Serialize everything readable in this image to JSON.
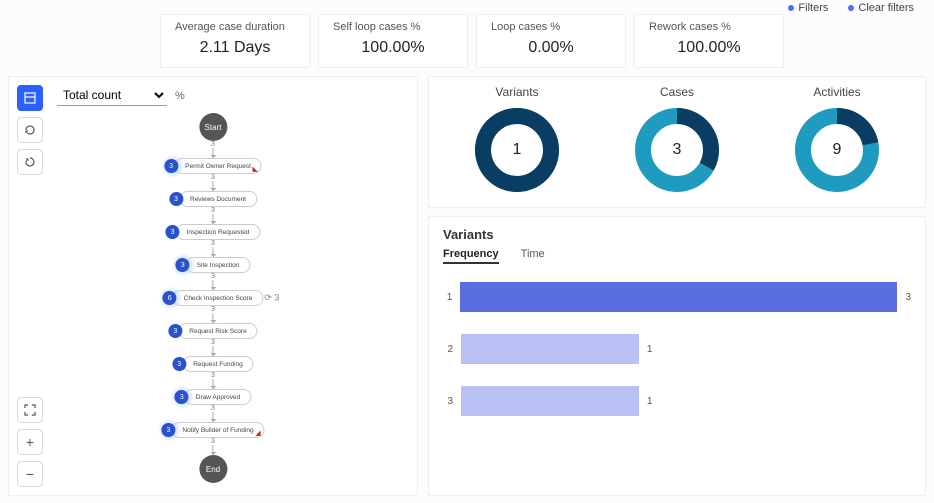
{
  "topbar": {
    "filters": "Filters",
    "clear": "Clear filters"
  },
  "metrics": [
    {
      "label": "Average case duration",
      "value": "2.11 Days"
    },
    {
      "label": "Self loop cases %",
      "value": "100.00%"
    },
    {
      "label": "Loop cases %",
      "value": "0.00%"
    },
    {
      "label": "Rework cases %",
      "value": "100.00%"
    }
  ],
  "left": {
    "dropdown": "Total count",
    "pct_symbol": "%",
    "flow": {
      "start": "Start",
      "end": "End",
      "edge_count": "3",
      "loop_label": "3",
      "nodes": [
        {
          "count": "3",
          "label": "Permit Owner Request",
          "halo": true,
          "corner": "◣",
          "corner_color": "#c62828"
        },
        {
          "count": "3",
          "label": "Reviews Document",
          "halo": false
        },
        {
          "count": "3",
          "label": "Inspection Requested",
          "halo": false
        },
        {
          "count": "3",
          "label": "Site Inspection",
          "halo": true
        },
        {
          "count": "6",
          "label": "Check Inspection Score",
          "halo": true,
          "loop": true
        },
        {
          "count": "3",
          "label": "Request Risk Score",
          "halo": false
        },
        {
          "count": "3",
          "label": "Request Funding",
          "halo": false
        },
        {
          "count": "3",
          "label": "Draw Approved",
          "halo": true
        },
        {
          "count": "3",
          "label": "Notify Builder of Funding",
          "halo": true,
          "corner": "◢",
          "corner_color": "#c62828"
        }
      ]
    }
  },
  "donuts": [
    {
      "title": "Variants",
      "value": "1",
      "pct": 1.0,
      "c1": "#0a3d62",
      "c2": "#1e9bbf"
    },
    {
      "title": "Cases",
      "value": "3",
      "pct": 0.33,
      "c1": "#0a3d62",
      "c2": "#1e9bbf"
    },
    {
      "title": "Activities",
      "value": "9",
      "pct": 0.22,
      "c1": "#0a3d62",
      "c2": "#1e9bbf"
    }
  ],
  "variants": {
    "heading": "Variants",
    "tabs": {
      "frequency": "Frequency",
      "time": "Time"
    },
    "bars": [
      {
        "idx": "1",
        "width_pct": 100,
        "color": "#5b6ee1",
        "value": "3"
      },
      {
        "idx": "2",
        "width_pct": 38,
        "color": "#b8c0f4",
        "value": "1"
      },
      {
        "idx": "3",
        "width_pct": 38,
        "color": "#b8c0f4",
        "value": "1"
      }
    ]
  }
}
